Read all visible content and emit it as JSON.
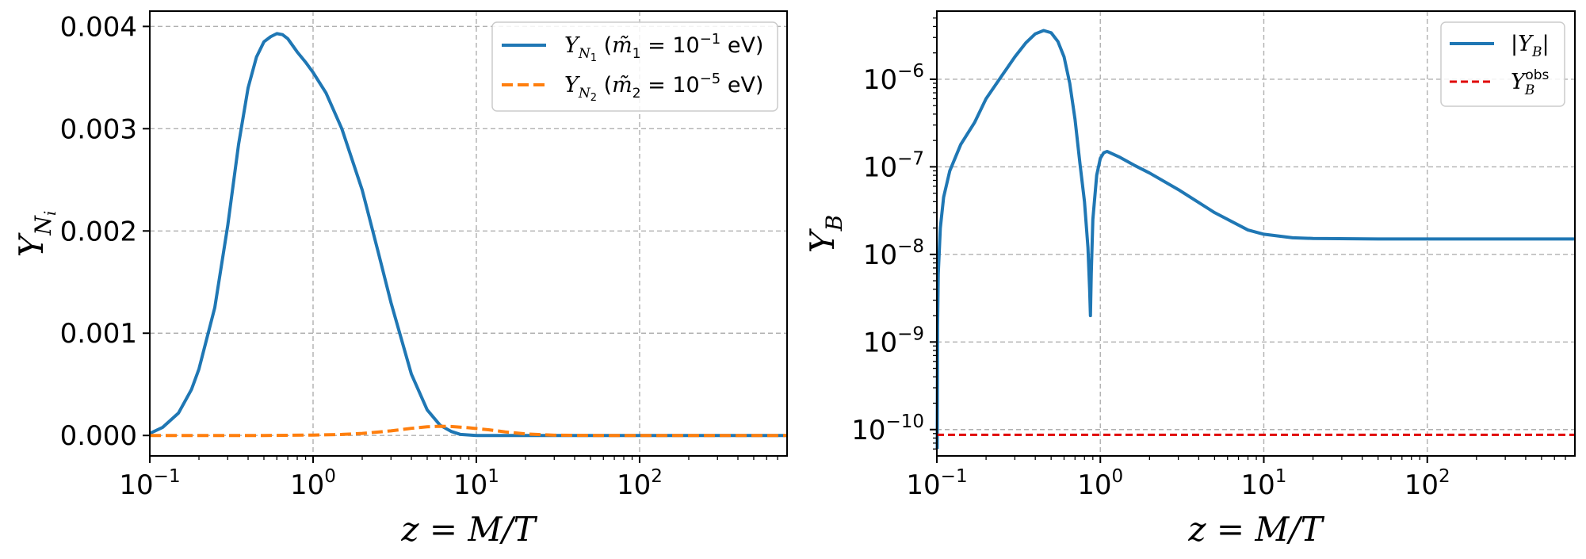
{
  "chart_data": [
    {
      "type": "line",
      "xscale": "log",
      "xlim": [
        0.1,
        800
      ],
      "ylim": [
        -0.0002,
        0.00415
      ],
      "xlabel": "z = M/T",
      "ylabel": "Y_{N_i}",
      "grid": true,
      "legend_position": "top-right",
      "xticks": [
        {
          "value": 0.1,
          "label": "10",
          "exp": "−1"
        },
        {
          "value": 1,
          "label": "10",
          "exp": "0"
        },
        {
          "value": 10,
          "label": "10",
          "exp": "1"
        },
        {
          "value": 100,
          "label": "10",
          "exp": "2"
        }
      ],
      "yticks": [
        {
          "value": 0.0,
          "label": "0.000"
        },
        {
          "value": 0.001,
          "label": "0.001"
        },
        {
          "value": 0.002,
          "label": "0.002"
        },
        {
          "value": 0.003,
          "label": "0.003"
        },
        {
          "value": 0.004,
          "label": "0.004"
        }
      ],
      "series": [
        {
          "name": "Y_{N_1} (m̃_1 = 10^{-1} eV)",
          "color": "#1f77b4",
          "style": "solid",
          "points": [
            [
              0.1,
              2e-05
            ],
            [
              0.12,
              8e-05
            ],
            [
              0.15,
              0.00022
            ],
            [
              0.18,
              0.00045
            ],
            [
              0.2,
              0.00065
            ],
            [
              0.25,
              0.00125
            ],
            [
              0.3,
              0.00205
            ],
            [
              0.35,
              0.00285
            ],
            [
              0.4,
              0.0034
            ],
            [
              0.45,
              0.0037
            ],
            [
              0.5,
              0.00385
            ],
            [
              0.55,
              0.0039
            ],
            [
              0.6,
              0.00393
            ],
            [
              0.65,
              0.00392
            ],
            [
              0.7,
              0.00388
            ],
            [
              0.8,
              0.00375
            ],
            [
              0.9,
              0.00365
            ],
            [
              1.0,
              0.00355
            ],
            [
              1.2,
              0.00335
            ],
            [
              1.5,
              0.003
            ],
            [
              2.0,
              0.0024
            ],
            [
              2.5,
              0.0018
            ],
            [
              3.0,
              0.0013
            ],
            [
              4.0,
              0.0006
            ],
            [
              5.0,
              0.00025
            ],
            [
              6.0,
              0.0001
            ],
            [
              7.0,
              4e-05
            ],
            [
              8.0,
              1e-05
            ],
            [
              10,
              0.0
            ],
            [
              30,
              0.0
            ],
            [
              100,
              0.0
            ],
            [
              800,
              0.0
            ]
          ]
        },
        {
          "name": "Y_{N_2} (m̃_2 = 10^{-5} eV)",
          "color": "#ff7f0e",
          "style": "dashed",
          "points": [
            [
              0.1,
              0.0
            ],
            [
              0.5,
              0.0
            ],
            [
              1.0,
              4e-06
            ],
            [
              1.5,
              1e-05
            ],
            [
              2.0,
              2e-05
            ],
            [
              3.0,
              4.5e-05
            ],
            [
              4.0,
              7e-05
            ],
            [
              5.0,
              8.5e-05
            ],
            [
              6.0,
              9e-05
            ],
            [
              7.0,
              8.8e-05
            ],
            [
              9.0,
              7.5e-05
            ],
            [
              12,
              5.5e-05
            ],
            [
              15,
              3.5e-05
            ],
            [
              20,
              1.5e-05
            ],
            [
              30,
              3e-06
            ],
            [
              50,
              0.0
            ],
            [
              100,
              0.0
            ],
            [
              800,
              0.0
            ]
          ]
        }
      ]
    },
    {
      "type": "line",
      "xscale": "log",
      "yscale": "log",
      "xlim": [
        0.1,
        800
      ],
      "ylim": [
        5e-11,
        6e-06
      ],
      "xlabel": "z = M/T",
      "ylabel": "Y_B",
      "grid": true,
      "legend_position": "top-right",
      "xticks": [
        {
          "value": 0.1,
          "label": "10",
          "exp": "−1"
        },
        {
          "value": 1,
          "label": "10",
          "exp": "0"
        },
        {
          "value": 10,
          "label": "10",
          "exp": "1"
        },
        {
          "value": 100,
          "label": "10",
          "exp": "2"
        }
      ],
      "yticks": [
        {
          "value": 1e-10,
          "label": "10",
          "exp": "−10"
        },
        {
          "value": 1e-09,
          "label": "10",
          "exp": "−9"
        },
        {
          "value": 1e-08,
          "label": "10",
          "exp": "−8"
        },
        {
          "value": 1e-07,
          "label": "10",
          "exp": "−7"
        },
        {
          "value": 1e-06,
          "label": "10",
          "exp": "−6"
        }
      ],
      "series": [
        {
          "name": "|Y_B|",
          "color": "#1f77b4",
          "style": "solid",
          "points": [
            [
              0.1005,
              6e-11
            ],
            [
              0.101,
              1.5e-09
            ],
            [
              0.102,
              6e-09
            ],
            [
              0.105,
              2e-08
            ],
            [
              0.11,
              4.5e-08
            ],
            [
              0.12,
              9e-08
            ],
            [
              0.14,
              1.8e-07
            ],
            [
              0.17,
              3.2e-07
            ],
            [
              0.2,
              6e-07
            ],
            [
              0.25,
              1.1e-06
            ],
            [
              0.3,
              1.8e-06
            ],
            [
              0.35,
              2.6e-06
            ],
            [
              0.4,
              3.3e-06
            ],
            [
              0.45,
              3.6e-06
            ],
            [
              0.5,
              3.4e-06
            ],
            [
              0.55,
              2.7e-06
            ],
            [
              0.6,
              1.8e-06
            ],
            [
              0.65,
              9e-07
            ],
            [
              0.7,
              3.5e-07
            ],
            [
              0.75,
              1.1e-07
            ],
            [
              0.8,
              4e-08
            ],
            [
              0.84,
              1.2e-08
            ],
            [
              0.86,
              4e-09
            ],
            [
              0.87,
              2e-09
            ],
            [
              0.88,
              6e-09
            ],
            [
              0.9,
              2.5e-08
            ],
            [
              0.95,
              8e-08
            ],
            [
              1.0,
              1.25e-07
            ],
            [
              1.05,
              1.45e-07
            ],
            [
              1.1,
              1.5e-07
            ],
            [
              1.3,
              1.3e-07
            ],
            [
              1.6,
              1.05e-07
            ],
            [
              2.0,
              8.5e-08
            ],
            [
              3.0,
              5.5e-08
            ],
            [
              5.0,
              3e-08
            ],
            [
              8.0,
              1.9e-08
            ],
            [
              10,
              1.7e-08
            ],
            [
              15,
              1.55e-08
            ],
            [
              20,
              1.52e-08
            ],
            [
              50,
              1.5e-08
            ],
            [
              100,
              1.5e-08
            ],
            [
              800,
              1.5e-08
            ]
          ]
        },
        {
          "name": "Y_B^{obs}",
          "color": "#e00000",
          "style": "dashed",
          "points": [
            [
              0.1,
              8.7e-11
            ],
            [
              800,
              8.7e-11
            ]
          ]
        }
      ]
    }
  ]
}
